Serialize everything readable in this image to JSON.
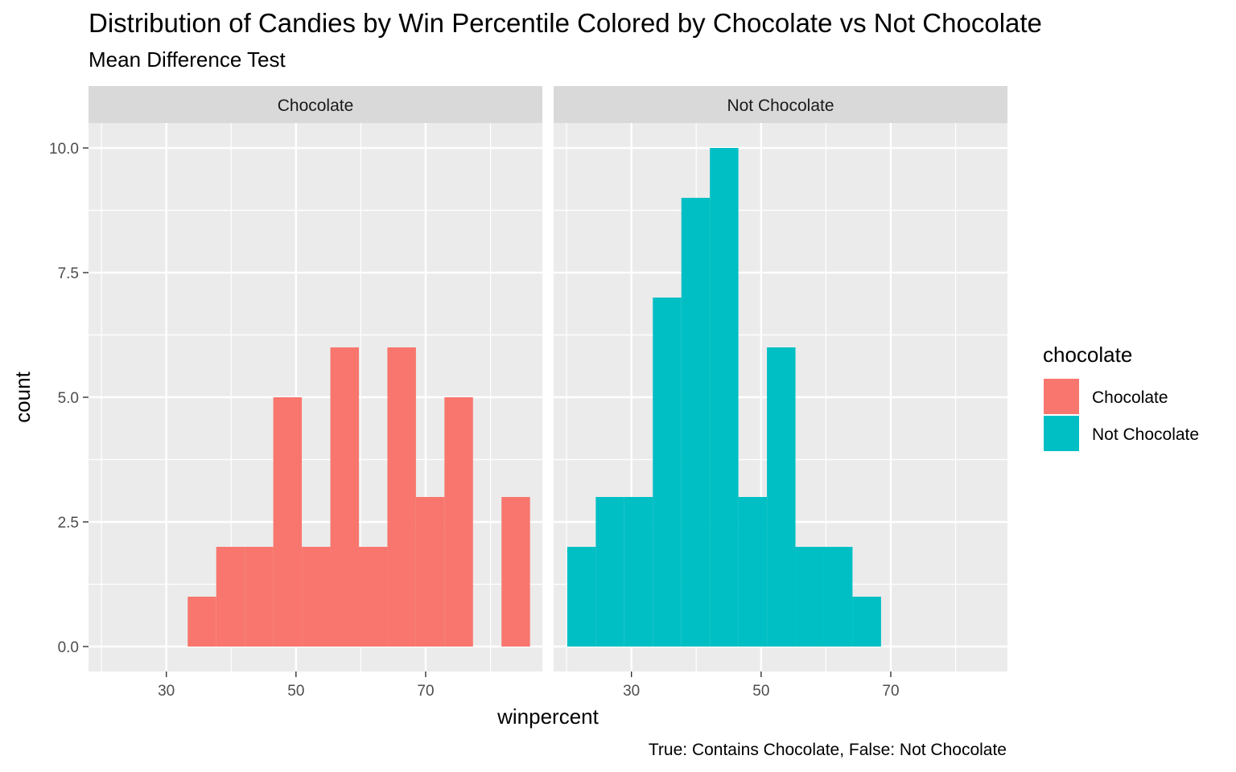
{
  "chart_data": {
    "type": "bar",
    "title": "Distribution of Candies by Win Percentile Colored by Chocolate vs Not Chocolate",
    "subtitle": "Mean Difference Test",
    "xlabel": "winpercent",
    "ylabel": "count",
    "caption": "True: Contains Chocolate, False: Not Chocolate",
    "legend": {
      "title": "chocolate",
      "placement": "right",
      "entries": [
        {
          "label": "Chocolate",
          "color": "#F8766D"
        },
        {
          "label": "Not Chocolate",
          "color": "#00BFC4"
        }
      ]
    },
    "xlim": [
      18,
      88
    ],
    "ylim": [
      -0.5,
      10.5
    ],
    "x_ticks": [
      30,
      50,
      70
    ],
    "x_tick_labels": [
      "30",
      "50",
      "70"
    ],
    "y_ticks": [
      0,
      2.5,
      5,
      7.5,
      10
    ],
    "y_tick_labels": [
      "0.0",
      "2.5",
      "5.0",
      "7.5",
      "10.0"
    ],
    "grid": true,
    "bin_width": 4.4,
    "facets": [
      {
        "strip_label": "Chocolate",
        "color": "#F8766D",
        "bins": [
          {
            "x0": 33.3,
            "x1": 37.7,
            "count": 1
          },
          {
            "x0": 37.7,
            "x1": 42.1,
            "count": 2
          },
          {
            "x0": 42.1,
            "x1": 46.5,
            "count": 2
          },
          {
            "x0": 46.5,
            "x1": 50.9,
            "count": 5
          },
          {
            "x0": 50.9,
            "x1": 55.3,
            "count": 2
          },
          {
            "x0": 55.3,
            "x1": 59.7,
            "count": 6
          },
          {
            "x0": 59.7,
            "x1": 64.1,
            "count": 2
          },
          {
            "x0": 64.1,
            "x1": 68.5,
            "count": 6
          },
          {
            "x0": 68.5,
            "x1": 72.9,
            "count": 3
          },
          {
            "x0": 72.9,
            "x1": 77.3,
            "count": 5
          },
          {
            "x0": 77.3,
            "x1": 81.7,
            "count": 0
          },
          {
            "x0": 81.7,
            "x1": 86.1,
            "count": 3
          }
        ]
      },
      {
        "strip_label": "Not Chocolate",
        "color": "#00BFC4",
        "bins": [
          {
            "x0": 20.1,
            "x1": 24.5,
            "count": 2
          },
          {
            "x0": 24.5,
            "x1": 28.9,
            "count": 3
          },
          {
            "x0": 28.9,
            "x1": 33.3,
            "count": 3
          },
          {
            "x0": 33.3,
            "x1": 37.7,
            "count": 7
          },
          {
            "x0": 37.7,
            "x1": 42.1,
            "count": 9
          },
          {
            "x0": 42.1,
            "x1": 46.5,
            "count": 10
          },
          {
            "x0": 46.5,
            "x1": 50.9,
            "count": 3
          },
          {
            "x0": 50.9,
            "x1": 55.3,
            "count": 6
          },
          {
            "x0": 55.3,
            "x1": 59.7,
            "count": 2
          },
          {
            "x0": 59.7,
            "x1": 64.1,
            "count": 2
          },
          {
            "x0": 64.1,
            "x1": 68.5,
            "count": 1
          }
        ]
      }
    ]
  }
}
